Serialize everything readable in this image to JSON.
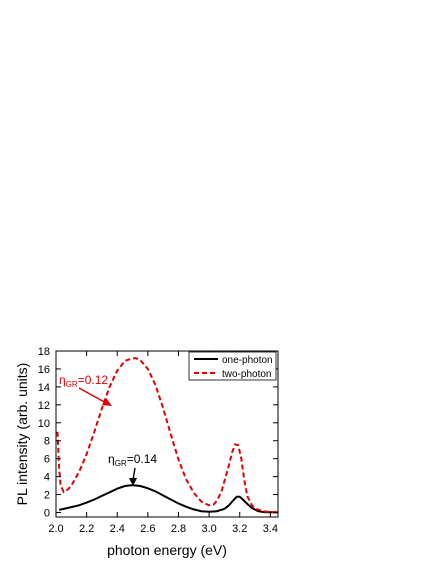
{
  "chart_data": {
    "type": "line",
    "xlabel": "photon energy (eV)",
    "ylabel": "PL intensity (arb. units)",
    "xlim": [
      2.0,
      3.45
    ],
    "ylim": [
      -0.5,
      18
    ],
    "xticks": [
      2.0,
      2.2,
      2.4,
      2.6,
      2.8,
      3.0,
      3.2,
      3.4
    ],
    "xtick_labels": [
      "2.0",
      "2.2",
      "2.4",
      "2.6",
      "2.8",
      "3.0",
      "3.2",
      "3.4"
    ],
    "yticks": [
      0,
      2,
      4,
      6,
      8,
      10,
      12,
      14,
      16,
      18
    ],
    "ytick_labels": [
      "0",
      "2",
      "4",
      "6",
      "8",
      "10",
      "12",
      "14",
      "16",
      "18"
    ],
    "legend_position": "top-right",
    "series": [
      {
        "name": "one-photon",
        "color": "#000000",
        "dash": "solid",
        "x": [
          2.02,
          2.05,
          2.1,
          2.15,
          2.2,
          2.25,
          2.3,
          2.35,
          2.4,
          2.45,
          2.5,
          2.55,
          2.6,
          2.65,
          2.7,
          2.75,
          2.8,
          2.85,
          2.9,
          2.95,
          3.0,
          3.05,
          3.1,
          3.13,
          3.16,
          3.18,
          3.2,
          3.22,
          3.25,
          3.28,
          3.32,
          3.36,
          3.4,
          3.45
        ],
        "y": [
          0.3,
          0.4,
          0.6,
          0.8,
          1.1,
          1.45,
          1.85,
          2.25,
          2.65,
          2.95,
          3.05,
          2.95,
          2.7,
          2.35,
          1.9,
          1.45,
          1.0,
          0.65,
          0.35,
          0.15,
          0.08,
          0.15,
          0.4,
          0.8,
          1.4,
          1.75,
          1.75,
          1.45,
          0.95,
          0.5,
          0.15,
          0.05,
          0.02,
          0.01
        ]
      },
      {
        "name": "two-photon",
        "color": "#e00000",
        "dash": "dashed",
        "x": [
          2.01,
          2.02,
          2.03,
          2.05,
          2.08,
          2.1,
          2.15,
          2.2,
          2.25,
          2.3,
          2.35,
          2.4,
          2.45,
          2.5,
          2.52,
          2.55,
          2.6,
          2.65,
          2.7,
          2.75,
          2.8,
          2.85,
          2.9,
          2.95,
          3.0,
          3.03,
          3.05,
          3.08,
          3.1,
          3.13,
          3.15,
          3.17,
          3.19,
          3.21,
          3.23,
          3.25,
          3.28,
          3.3,
          3.35,
          3.4,
          3.45
        ],
        "y": [
          9.0,
          5.0,
          3.0,
          2.3,
          2.6,
          3.0,
          4.5,
          6.5,
          9.0,
          11.6,
          14.0,
          15.8,
          16.9,
          17.2,
          17.2,
          17.0,
          16.0,
          14.2,
          11.6,
          8.7,
          5.9,
          3.7,
          2.2,
          1.2,
          0.8,
          0.9,
          1.3,
          2.3,
          3.5,
          5.3,
          6.7,
          7.6,
          7.5,
          6.0,
          3.6,
          1.8,
          0.8,
          0.45,
          0.15,
          0.05,
          0.02
        ]
      }
    ],
    "annotations": [
      {
        "prefix": "η",
        "sub": "GR",
        "text": "=0.12",
        "color": "#e00000"
      },
      {
        "prefix": "η",
        "sub": "GR",
        "text": "=0.14",
        "color": "#000000"
      }
    ]
  }
}
